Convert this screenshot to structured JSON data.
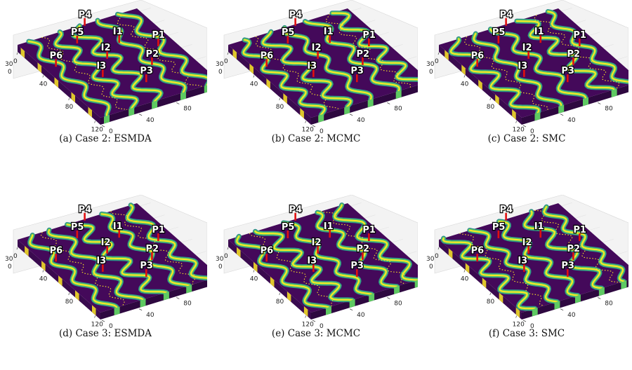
{
  "figure": {
    "panels": [
      {
        "caption": "(a) Case 2:  ESMDA"
      },
      {
        "caption": "(b) Case 2:  MCMC"
      },
      {
        "caption": "(c) Case 2:  SMC"
      },
      {
        "caption": "(d) Case 3:  ESMDA"
      },
      {
        "caption": "(e) Case 3:  MCMC"
      },
      {
        "caption": "(f) Case 3:  SMC"
      }
    ],
    "axes": {
      "x_ticks": [
        "0",
        "40",
        "80",
        "120"
      ],
      "y_ticks": [
        "0",
        "40",
        "80",
        "120"
      ],
      "z_ticks": [
        "30",
        "0"
      ]
    },
    "wells": [
      "P4",
      "P5",
      "I1",
      "P1",
      "P6",
      "I2",
      "P2",
      "I3",
      "P3"
    ],
    "colors": {
      "background_field": "#44095a",
      "channel_outer": "#2c8d8a",
      "channel_mid": "#5ec962",
      "channel_core": "#fde725",
      "well": "#e01010"
    }
  }
}
